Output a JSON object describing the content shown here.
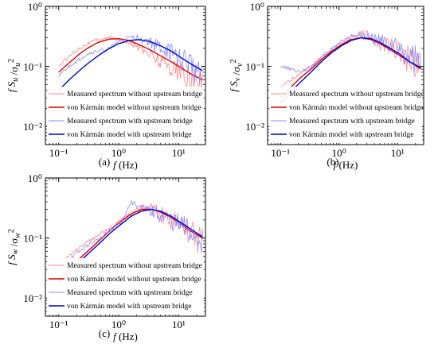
{
  "figure": {
    "legend_entries": [
      "Measured spectrum without upstream bridge",
      "von Kármán model without upstream bridge",
      "Measured spectrum with upstream bridge",
      "von Kármán model with upstream bridge"
    ],
    "x_axis_label": "f (Hz)",
    "x_tick_labels": [
      "10⁻¹",
      "10⁰",
      "10¹"
    ],
    "y_tick_labels": [
      "10⁰",
      "10⁻¹",
      "10⁻²"
    ],
    "colors": {
      "measured_without": "#ff8a8a",
      "model_without": "#e00000",
      "measured_with": "#8a8aff",
      "model_with": "#0000cc"
    }
  },
  "chart_data": [
    {
      "type": "line",
      "panel_label": "(a)",
      "ylabel": "f S_u / σ_u²",
      "xlabel": "f (Hz)",
      "x_scale": "log",
      "y_scale": "log",
      "xlim": [
        0.06,
        28
      ],
      "ylim": [
        0.005,
        1.0
      ],
      "legend_position": "bottom",
      "series": [
        {
          "name": "Measured spectrum without upstream bridge",
          "kind": "measured",
          "color": "#ff8a8a",
          "x": [
            0.1,
            0.15,
            0.22,
            0.3,
            0.45,
            0.7,
            1.0,
            1.5,
            2.2,
            3.3,
            5,
            7.5,
            11,
            16,
            25
          ],
          "y": [
            0.1,
            0.15,
            0.2,
            0.24,
            0.28,
            0.3,
            0.28,
            0.25,
            0.2,
            0.16,
            0.12,
            0.1,
            0.08,
            0.06,
            0.05
          ]
        },
        {
          "name": "von Kármán model without upstream bridge",
          "kind": "model",
          "color": "#e00000",
          "x": [
            0.1,
            0.15,
            0.22,
            0.3,
            0.45,
            0.7,
            1.0,
            1.5,
            2.2,
            3.3,
            5,
            7.5,
            11,
            16,
            25
          ],
          "y": [
            0.08,
            0.115,
            0.16,
            0.2,
            0.25,
            0.285,
            0.29,
            0.27,
            0.23,
            0.19,
            0.15,
            0.12,
            0.095,
            0.075,
            0.06
          ]
        },
        {
          "name": "Measured spectrum with upstream bridge",
          "kind": "measured",
          "color": "#8a8aff",
          "x": [
            0.1,
            0.15,
            0.22,
            0.3,
            0.45,
            0.7,
            1.0,
            1.5,
            2.2,
            3.3,
            5,
            7.5,
            11,
            16,
            25
          ],
          "y": [
            0.07,
            0.1,
            0.13,
            0.16,
            0.18,
            0.2,
            0.26,
            0.3,
            0.3,
            0.25,
            0.2,
            0.16,
            0.13,
            0.1,
            0.08
          ]
        },
        {
          "name": "von Kármán model with upstream bridge",
          "kind": "model",
          "color": "#0000cc",
          "x": [
            0.1,
            0.15,
            0.22,
            0.3,
            0.45,
            0.7,
            1.0,
            1.5,
            2.2,
            3.3,
            5,
            7.5,
            11,
            16,
            25
          ],
          "y": [
            0.04,
            0.06,
            0.085,
            0.11,
            0.15,
            0.2,
            0.24,
            0.27,
            0.28,
            0.26,
            0.22,
            0.18,
            0.14,
            0.11,
            0.085
          ]
        }
      ]
    },
    {
      "type": "line",
      "panel_label": "(b)",
      "ylabel": "f S_v / σ_v²",
      "xlabel": "f (Hz)",
      "x_scale": "log",
      "y_scale": "log",
      "xlim": [
        0.06,
        28
      ],
      "ylim": [
        0.005,
        1.0
      ],
      "legend_position": "bottom",
      "series": [
        {
          "name": "Measured spectrum without upstream bridge",
          "kind": "measured",
          "color": "#ff8a8a",
          "x": [
            0.1,
            0.15,
            0.22,
            0.33,
            0.5,
            0.75,
            1.1,
            1.6,
            2.4,
            3.5,
            5,
            7.5,
            11,
            16,
            25
          ],
          "y": [
            0.045,
            0.06,
            0.08,
            0.1,
            0.14,
            0.18,
            0.24,
            0.3,
            0.35,
            0.3,
            0.25,
            0.2,
            0.16,
            0.13,
            0.1
          ]
        },
        {
          "name": "von Kármán model without upstream bridge",
          "kind": "model",
          "color": "#e00000",
          "x": [
            0.1,
            0.15,
            0.22,
            0.33,
            0.5,
            0.75,
            1.1,
            1.6,
            2.4,
            3.5,
            5,
            7.5,
            11,
            16,
            25
          ],
          "y": [
            0.03,
            0.045,
            0.065,
            0.09,
            0.13,
            0.18,
            0.23,
            0.28,
            0.3,
            0.28,
            0.24,
            0.19,
            0.15,
            0.12,
            0.09
          ]
        },
        {
          "name": "Measured spectrum with upstream bridge",
          "kind": "measured",
          "color": "#8a8aff",
          "x": [
            0.1,
            0.15,
            0.22,
            0.33,
            0.5,
            0.75,
            1.1,
            1.6,
            2.4,
            3.5,
            5,
            7.5,
            11,
            16,
            25
          ],
          "y": [
            0.1,
            0.09,
            0.08,
            0.1,
            0.14,
            0.2,
            0.26,
            0.32,
            0.34,
            0.3,
            0.26,
            0.22,
            0.18,
            0.15,
            0.12
          ]
        },
        {
          "name": "von Kármán model with upstream bridge",
          "kind": "model",
          "color": "#0000cc",
          "x": [
            0.1,
            0.15,
            0.22,
            0.33,
            0.5,
            0.75,
            1.1,
            1.6,
            2.4,
            3.5,
            5,
            7.5,
            11,
            16,
            25
          ],
          "y": [
            0.025,
            0.038,
            0.055,
            0.08,
            0.12,
            0.17,
            0.22,
            0.27,
            0.3,
            0.29,
            0.25,
            0.2,
            0.16,
            0.12,
            0.095
          ]
        }
      ]
    },
    {
      "type": "line",
      "panel_label": "(c)",
      "ylabel": "f S_w / σ_w²",
      "xlabel": "f (Hz)",
      "x_scale": "log",
      "y_scale": "log",
      "xlim": [
        0.06,
        28
      ],
      "ylim": [
        0.005,
        1.0
      ],
      "legend_position": "bottom",
      "series": [
        {
          "name": "Measured spectrum without upstream bridge",
          "kind": "measured",
          "color": "#ff8a8a",
          "x": [
            0.1,
            0.15,
            0.22,
            0.33,
            0.5,
            0.75,
            1.1,
            1.6,
            2.4,
            3.5,
            5,
            7.5,
            11,
            16,
            25
          ],
          "y": [
            0.035,
            0.05,
            0.07,
            0.09,
            0.12,
            0.15,
            0.2,
            0.26,
            0.32,
            0.3,
            0.25,
            0.2,
            0.16,
            0.12,
            0.09
          ]
        },
        {
          "name": "von Kármán model without upstream bridge",
          "kind": "model",
          "color": "#e00000",
          "x": [
            0.1,
            0.15,
            0.22,
            0.33,
            0.5,
            0.75,
            1.1,
            1.6,
            2.4,
            3.5,
            5,
            7.5,
            11,
            16,
            25
          ],
          "y": [
            0.02,
            0.03,
            0.045,
            0.065,
            0.095,
            0.14,
            0.19,
            0.25,
            0.3,
            0.3,
            0.27,
            0.22,
            0.17,
            0.13,
            0.1
          ]
        },
        {
          "name": "Measured spectrum with upstream bridge",
          "kind": "measured",
          "color": "#8a8aff",
          "x": [
            0.1,
            0.15,
            0.22,
            0.33,
            0.5,
            0.75,
            1.1,
            1.6,
            2.4,
            3.5,
            5,
            7.5,
            11,
            16,
            25
          ],
          "y": [
            0.04,
            0.045,
            0.06,
            0.08,
            0.1,
            0.14,
            0.18,
            0.4,
            0.32,
            0.28,
            0.24,
            0.2,
            0.16,
            0.13,
            0.1
          ]
        },
        {
          "name": "von Kármán model with upstream bridge",
          "kind": "model",
          "color": "#0000cc",
          "x": [
            0.1,
            0.15,
            0.22,
            0.33,
            0.5,
            0.75,
            1.1,
            1.6,
            2.4,
            3.5,
            5,
            7.5,
            11,
            16,
            25
          ],
          "y": [
            0.018,
            0.027,
            0.04,
            0.058,
            0.085,
            0.125,
            0.17,
            0.23,
            0.28,
            0.3,
            0.28,
            0.23,
            0.18,
            0.14,
            0.105
          ]
        }
      ]
    }
  ]
}
